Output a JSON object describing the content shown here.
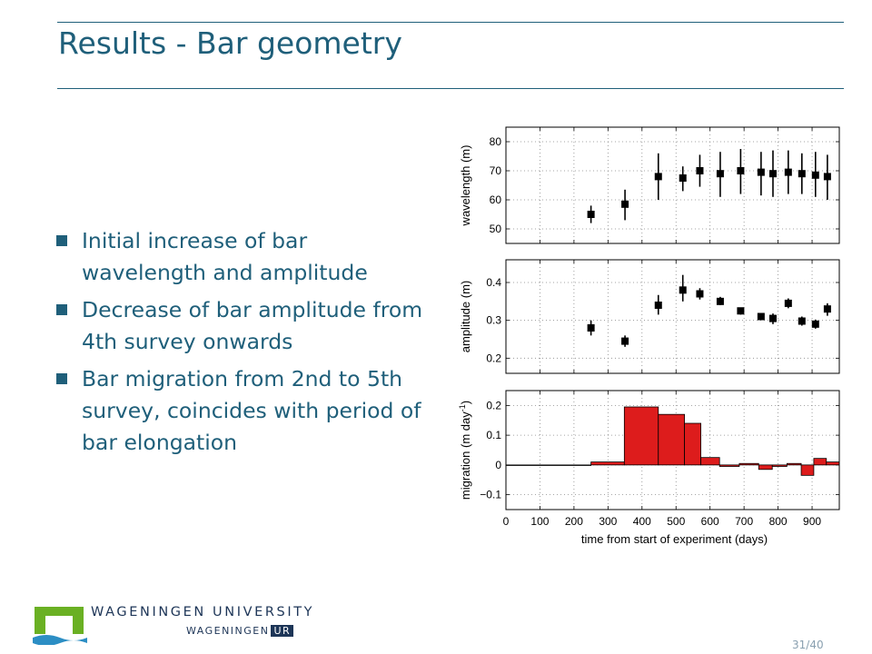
{
  "slide": {
    "title": "Results - Bar geometry",
    "page": "31/40",
    "bullets": [
      "Initial increase of bar wavelength and amplitude",
      "Decrease of bar amplitude from 4th survey onwards",
      "Bar migration from 2nd to 5th survey, coincides with period of bar elongation"
    ]
  },
  "logo": {
    "university": "WAGENINGEN UNIVERSITY",
    "ur_prefix": "WAGENINGEN",
    "ur_box": "UR",
    "colors": {
      "green": "#6ab023",
      "blue": "#2c8ec4",
      "navy": "#1d3557"
    }
  },
  "chart_data": [
    {
      "type": "scatter",
      "ylabel": "wavelength (m)",
      "xlim": [
        0,
        980
      ],
      "ylim": [
        45,
        85
      ],
      "yticks": [
        50,
        60,
        70,
        80
      ],
      "grid": true,
      "x": [
        250,
        350,
        448,
        520,
        570,
        630,
        690,
        750,
        785,
        830,
        870,
        910,
        945
      ],
      "y": [
        55,
        58.5,
        68,
        67.5,
        70,
        69,
        70,
        69.5,
        69,
        69.5,
        69,
        68.5,
        68
      ],
      "err_low": [
        52,
        53,
        60,
        63,
        64.5,
        61,
        62,
        61.5,
        61,
        62,
        62,
        61,
        60
      ],
      "err_high": [
        58,
        63.5,
        76,
        71.5,
        75.5,
        76.5,
        77.5,
        76.5,
        77,
        77,
        76,
        76.5,
        75.5
      ]
    },
    {
      "type": "scatter",
      "ylabel": "amplitude (m)",
      "xlim": [
        0,
        980
      ],
      "ylim": [
        0.16,
        0.46
      ],
      "yticks": [
        0.2,
        0.3,
        0.4
      ],
      "grid": true,
      "x": [
        250,
        350,
        448,
        520,
        570,
        630,
        690,
        750,
        785,
        830,
        870,
        910,
        945
      ],
      "y": [
        0.28,
        0.245,
        0.34,
        0.38,
        0.37,
        0.35,
        0.325,
        0.31,
        0.305,
        0.345,
        0.298,
        0.29,
        0.33
      ],
      "err_low": [
        0.26,
        0.23,
        0.315,
        0.35,
        0.355,
        0.34,
        0.315,
        0.302,
        0.29,
        0.332,
        0.286,
        0.278,
        0.312
      ],
      "err_high": [
        0.3,
        0.26,
        0.367,
        0.42,
        0.385,
        0.362,
        0.333,
        0.318,
        0.318,
        0.358,
        0.31,
        0.302,
        0.345
      ]
    },
    {
      "type": "bar",
      "ylabel": "migration (m day",
      "ylabel_sup": "-1",
      "ylabel_close": ")",
      "xlabel": "time from start of experiment (days)",
      "xlim": [
        0,
        980
      ],
      "ylim": [
        -0.15,
        0.25
      ],
      "yticks": [
        -0.1,
        0,
        0.1,
        0.2
      ],
      "ytick_labels": [
        "−0.1",
        "0",
        "0.1",
        "0.2"
      ],
      "xticks": [
        0,
        100,
        200,
        300,
        400,
        500,
        600,
        700,
        800,
        900
      ],
      "grid": true,
      "bar_color": "#dd1c1c",
      "bins": [
        [
          0,
          250,
          0
        ],
        [
          250,
          348,
          0.01
        ],
        [
          348,
          448,
          0.195
        ],
        [
          448,
          525,
          0.17
        ],
        [
          525,
          573,
          0.14
        ],
        [
          573,
          628,
          0.025
        ],
        [
          628,
          686,
          -0.005
        ],
        [
          686,
          743,
          0.005
        ],
        [
          743,
          783,
          -0.015
        ],
        [
          783,
          826,
          -0.005
        ],
        [
          826,
          868,
          0.005
        ],
        [
          868,
          905,
          -0.035
        ],
        [
          905,
          942,
          0.022
        ],
        [
          942,
          980,
          0.01
        ]
      ]
    }
  ]
}
